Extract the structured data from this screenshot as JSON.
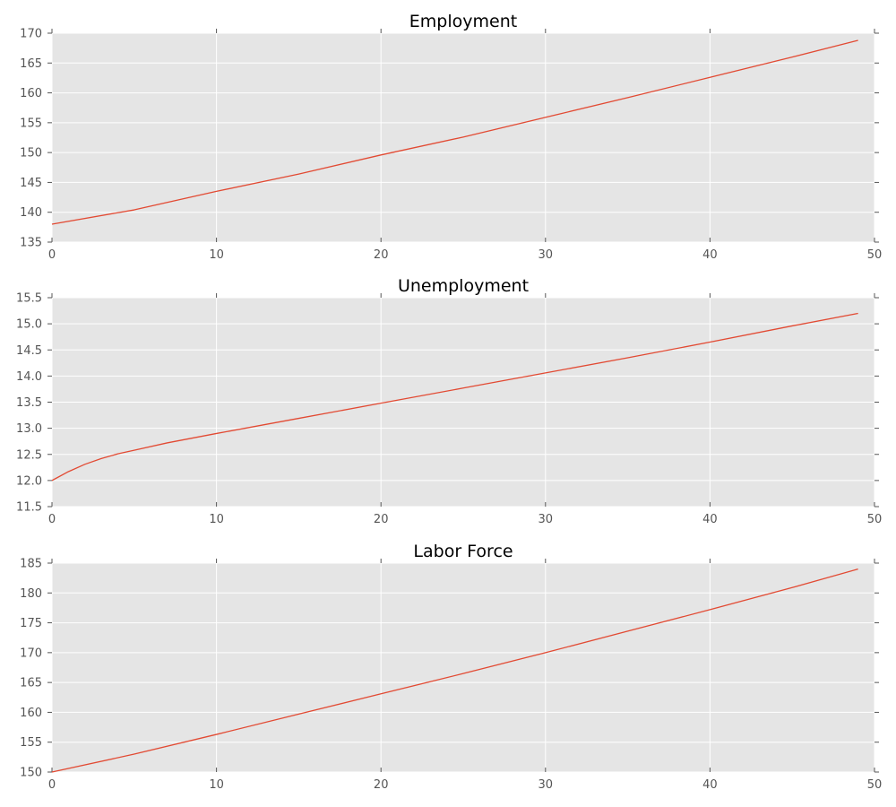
{
  "figure": {
    "background": "#ffffff",
    "axes_background": "#e5e5e5",
    "grid_color": "#ffffff",
    "tick_color": "#555555",
    "line_color": "#e24a33"
  },
  "chart_data": [
    {
      "type": "line",
      "title": "Employment",
      "xlabel": "",
      "ylabel": "",
      "xlim": [
        0,
        50
      ],
      "ylim": [
        135,
        170
      ],
      "xticks": [
        0,
        10,
        20,
        30,
        40,
        50
      ],
      "xtick_labels": [
        "0",
        "10",
        "20",
        "30",
        "40",
        "50"
      ],
      "yticks": [
        135,
        140,
        145,
        150,
        155,
        160,
        165,
        170
      ],
      "ytick_labels": [
        "135",
        "140",
        "145",
        "150",
        "155",
        "160",
        "165",
        "170"
      ],
      "grid": true,
      "series": [
        {
          "color": "#e24a33",
          "x": [
            0,
            5,
            10,
            15,
            20,
            25,
            30,
            35,
            40,
            45,
            49
          ],
          "y": [
            138.0,
            140.4,
            143.5,
            146.4,
            149.6,
            152.6,
            155.9,
            159.2,
            162.6,
            166.0,
            168.8
          ]
        }
      ]
    },
    {
      "type": "line",
      "title": "Unemployment",
      "xlabel": "",
      "ylabel": "",
      "xlim": [
        0,
        50
      ],
      "ylim": [
        11.5,
        15.5
      ],
      "xticks": [
        0,
        10,
        20,
        30,
        40,
        50
      ],
      "xtick_labels": [
        "0",
        "10",
        "20",
        "30",
        "40",
        "50"
      ],
      "yticks": [
        11.5,
        12.0,
        12.5,
        13.0,
        13.5,
        14.0,
        14.5,
        15.0,
        15.5
      ],
      "ytick_labels": [
        "11.5",
        "12.0",
        "12.5",
        "13.0",
        "13.5",
        "14.0",
        "14.5",
        "15.0",
        "15.5"
      ],
      "grid": true,
      "series": [
        {
          "color": "#e24a33",
          "x": [
            0,
            1,
            2,
            3,
            4,
            5,
            7,
            10,
            15,
            20,
            25,
            30,
            35,
            40,
            45,
            49
          ],
          "y": [
            12.0,
            12.17,
            12.31,
            12.42,
            12.51,
            12.58,
            12.72,
            12.9,
            13.19,
            13.48,
            13.77,
            14.06,
            14.35,
            14.65,
            14.96,
            15.2
          ]
        }
      ]
    },
    {
      "type": "line",
      "title": "Labor Force",
      "xlabel": "",
      "ylabel": "",
      "xlim": [
        0,
        50
      ],
      "ylim": [
        150,
        185
      ],
      "xticks": [
        0,
        10,
        20,
        30,
        40,
        50
      ],
      "xtick_labels": [
        "0",
        "10",
        "20",
        "30",
        "40",
        "50"
      ],
      "yticks": [
        150,
        155,
        160,
        165,
        170,
        175,
        180,
        185
      ],
      "ytick_labels": [
        "150",
        "155",
        "160",
        "165",
        "170",
        "175",
        "180",
        "185"
      ],
      "grid": true,
      "series": [
        {
          "color": "#e24a33",
          "x": [
            0,
            5,
            10,
            15,
            20,
            25,
            30,
            35,
            40,
            45,
            49
          ],
          "y": [
            150.0,
            153.0,
            156.3,
            159.7,
            163.1,
            166.5,
            170.0,
            173.6,
            177.2,
            180.9,
            184.0
          ]
        }
      ]
    }
  ]
}
